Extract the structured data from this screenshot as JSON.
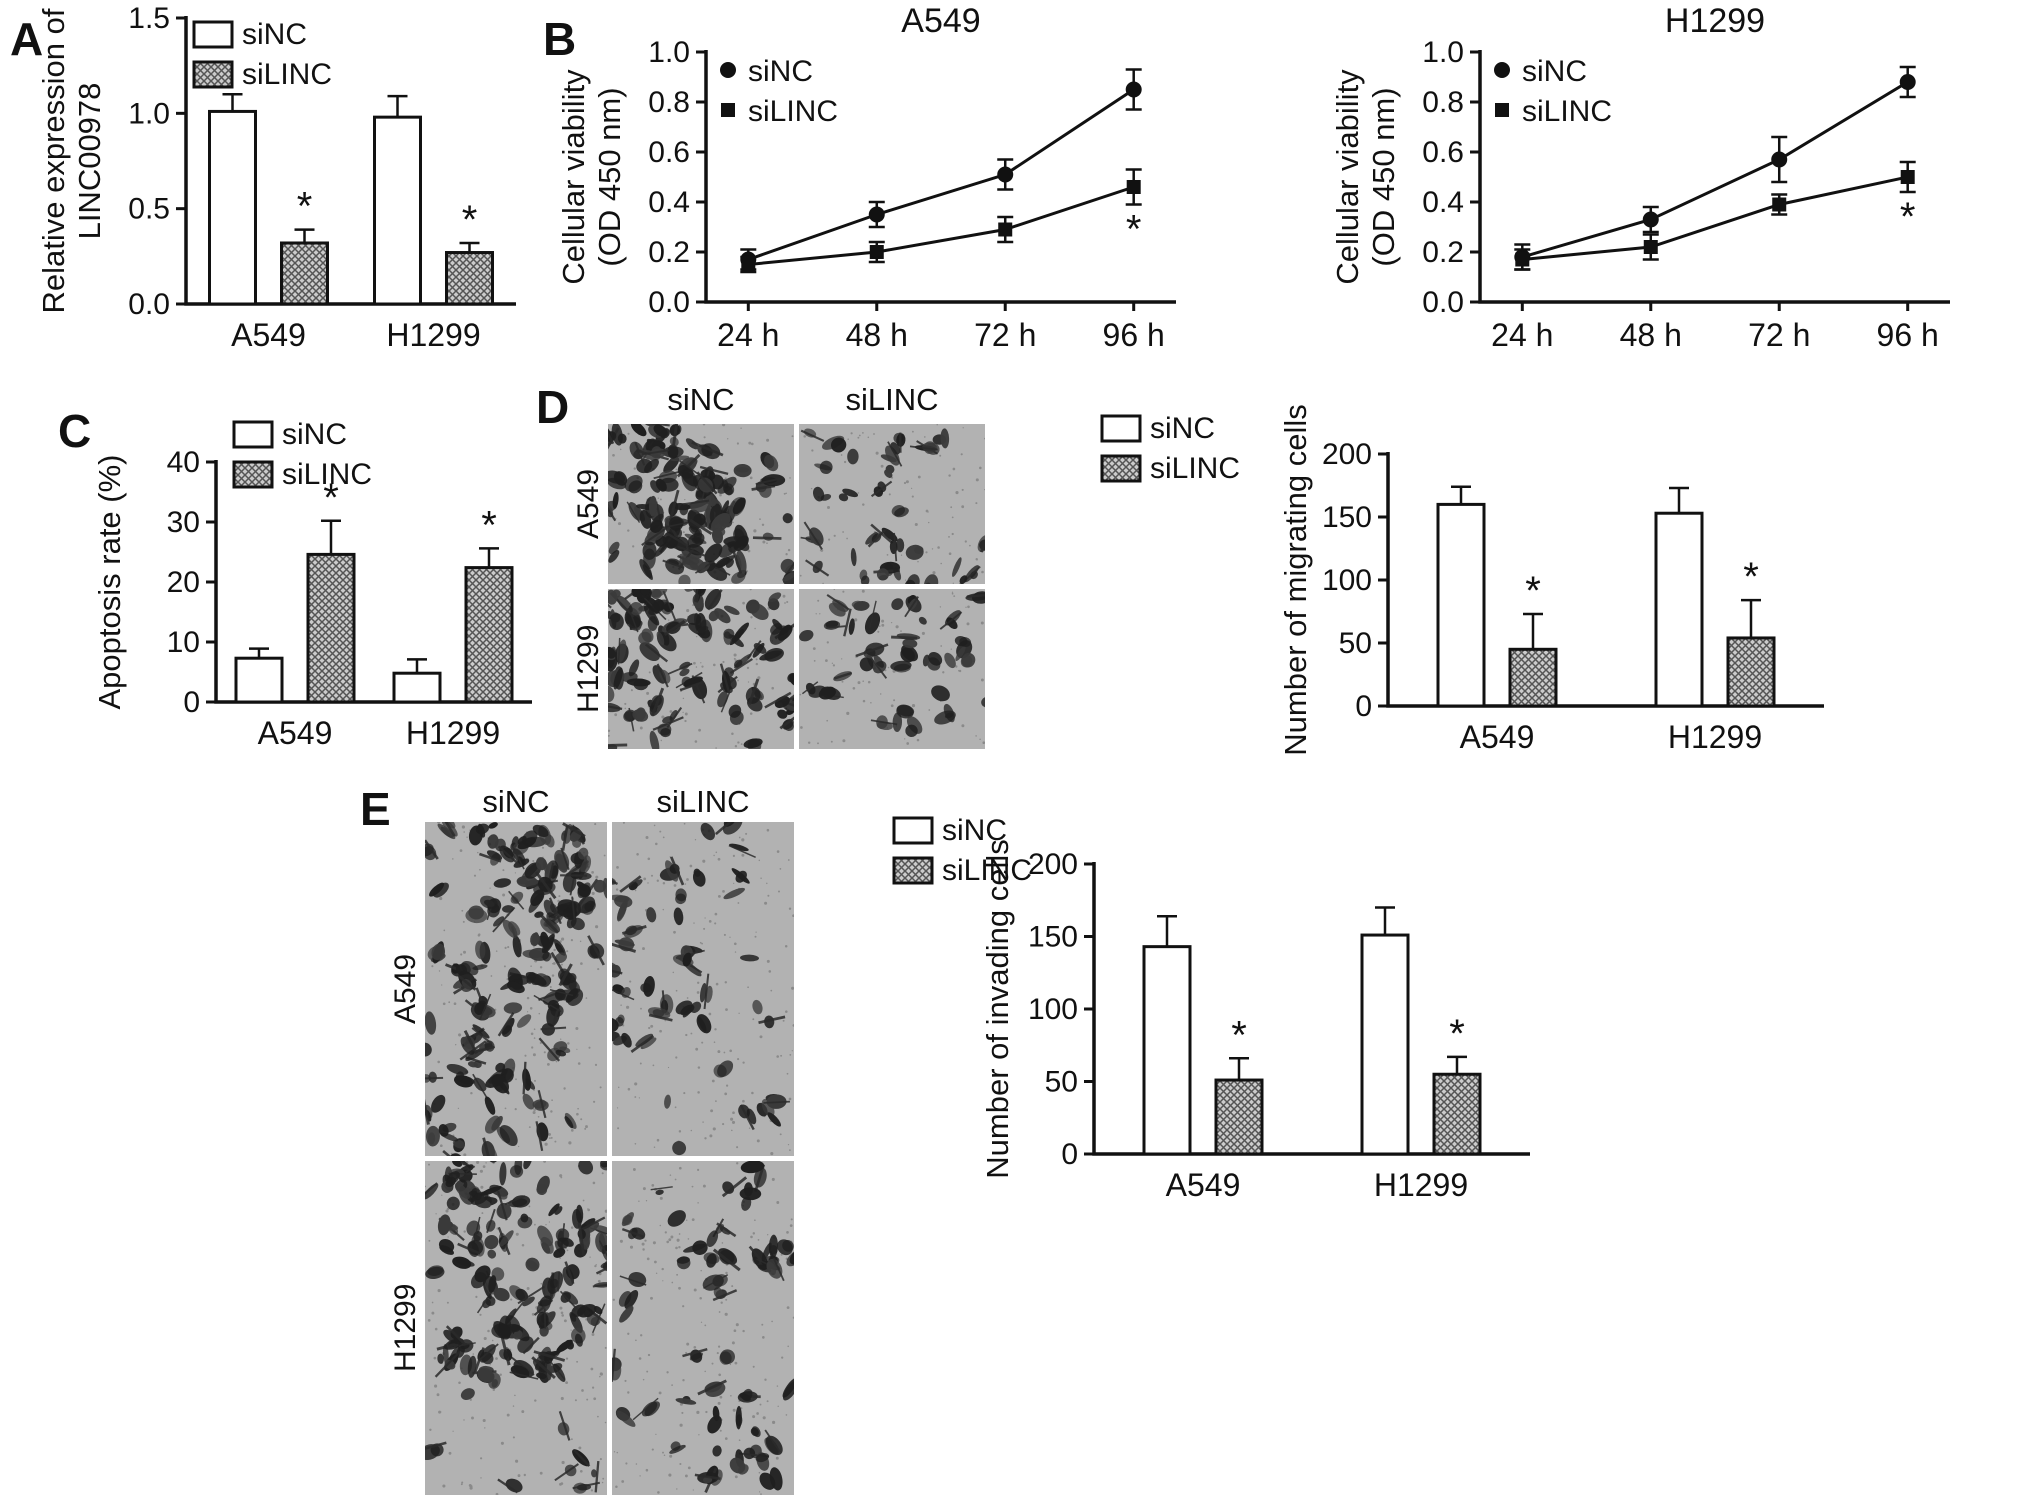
{
  "panel_labels": {
    "A": "A",
    "B": "B",
    "C": "C",
    "D": "D",
    "E": "E"
  },
  "legend_labels": [
    "siNC",
    "siLINC"
  ],
  "cell_lines": [
    "A549",
    "H1299"
  ],
  "micrographs": {
    "D": {
      "columns": [
        "siNC",
        "siLINC"
      ],
      "rows": [
        "A549",
        "H1299"
      ],
      "density": [
        [
          0.92,
          0.3
        ],
        [
          0.85,
          0.32
        ]
      ]
    },
    "E": {
      "columns": [
        "siNC",
        "siLINC"
      ],
      "rows": [
        "A549",
        "H1299"
      ],
      "density": [
        [
          0.6,
          0.22
        ],
        [
          0.58,
          0.26
        ]
      ]
    }
  },
  "chart_data": [
    {
      "id": "A",
      "panel": "A",
      "type": "bar",
      "ylabel": "Relative expression of\nLINC00978",
      "categories": [
        "A549",
        "H1299"
      ],
      "series": [
        {
          "name": "siNC",
          "fill": "open",
          "values": [
            1.01,
            0.98
          ],
          "errors": [
            0.09,
            0.11
          ]
        },
        {
          "name": "siLINC",
          "fill": "hatched",
          "values": [
            0.32,
            0.27
          ],
          "errors": [
            0.07,
            0.05
          ],
          "significance": [
            "*",
            "*"
          ]
        }
      ],
      "ylim": [
        0,
        1.5
      ],
      "yticks": [
        0,
        0.5,
        1,
        1.5
      ],
      "ytick_labels": [
        "0.0",
        "0.5",
        "1.0",
        "1.5"
      ],
      "legend_position": "top-left"
    },
    {
      "id": "B1",
      "panel": "B",
      "type": "line",
      "title": "A549",
      "ylabel": "Cellular viability\n(OD 450 nm)",
      "x": [
        "24 h",
        "48 h",
        "72 h",
        "96 h"
      ],
      "series": [
        {
          "name": "siNC",
          "marker": "circle",
          "values": [
            0.17,
            0.35,
            0.51,
            0.85
          ],
          "errors": [
            0.04,
            0.05,
            0.06,
            0.08
          ]
        },
        {
          "name": "siLINC",
          "marker": "square",
          "values": [
            0.15,
            0.2,
            0.29,
            0.46
          ],
          "errors": [
            0.03,
            0.04,
            0.05,
            0.07
          ],
          "significance": [
            "",
            "",
            "",
            "*"
          ]
        }
      ],
      "ylim": [
        0,
        1.0
      ],
      "yticks": [
        0,
        0.2,
        0.4,
        0.6,
        0.8,
        1.0
      ],
      "ytick_labels": [
        "0.0",
        "0.2",
        "0.4",
        "0.6",
        "0.8",
        "1.0"
      ],
      "legend_position": "inside-top-left"
    },
    {
      "id": "B2",
      "panel": "B",
      "type": "line",
      "title": "H1299",
      "ylabel": "Cellular viability\n(OD 450 nm)",
      "x": [
        "24 h",
        "48 h",
        "72 h",
        "96 h"
      ],
      "series": [
        {
          "name": "siNC",
          "marker": "circle",
          "values": [
            0.18,
            0.33,
            0.57,
            0.88
          ],
          "errors": [
            0.05,
            0.05,
            0.09,
            0.06
          ]
        },
        {
          "name": "siLINC",
          "marker": "square",
          "values": [
            0.17,
            0.22,
            0.39,
            0.5
          ],
          "errors": [
            0.04,
            0.05,
            0.04,
            0.06
          ],
          "significance": [
            "",
            "",
            "",
            "*"
          ]
        }
      ],
      "ylim": [
        0,
        1.0
      ],
      "yticks": [
        0,
        0.2,
        0.4,
        0.6,
        0.8,
        1.0
      ],
      "ytick_labels": [
        "0.0",
        "0.2",
        "0.4",
        "0.6",
        "0.8",
        "1.0"
      ],
      "legend_position": "inside-top-left"
    },
    {
      "id": "C",
      "panel": "C",
      "type": "bar",
      "ylabel": "Apoptosis rate (%)",
      "categories": [
        "A549",
        "H1299"
      ],
      "series": [
        {
          "name": "siNC",
          "fill": "open",
          "values": [
            7.3,
            4.8
          ],
          "errors": [
            1.6,
            2.3
          ]
        },
        {
          "name": "siLINC",
          "fill": "hatched",
          "values": [
            24.6,
            22.4
          ],
          "errors": [
            5.6,
            3.2
          ],
          "significance": [
            "*",
            "*"
          ]
        }
      ],
      "ylim": [
        0,
        40
      ],
      "yticks": [
        0,
        10,
        20,
        30,
        40
      ],
      "ytick_labels": [
        "0",
        "10",
        "20",
        "30",
        "40"
      ],
      "legend_position": "top-left"
    },
    {
      "id": "D",
      "panel": "D",
      "type": "bar",
      "ylabel": "Number of migrating cells",
      "categories": [
        "A549",
        "H1299"
      ],
      "series": [
        {
          "name": "siNC",
          "fill": "open",
          "values": [
            160,
            153
          ],
          "errors": [
            14,
            20
          ]
        },
        {
          "name": "siLINC",
          "fill": "hatched",
          "values": [
            45,
            54
          ],
          "errors": [
            28,
            30
          ],
          "significance": [
            "*",
            "*"
          ]
        }
      ],
      "ylim": [
        0,
        200
      ],
      "yticks": [
        0,
        50,
        100,
        150,
        200
      ],
      "ytick_labels": [
        "0",
        "50",
        "100",
        "150",
        "200"
      ],
      "legend_position": "top-left"
    },
    {
      "id": "E",
      "panel": "E",
      "type": "bar",
      "ylabel": "Number of invading cells",
      "categories": [
        "A549",
        "H1299"
      ],
      "series": [
        {
          "name": "siNC",
          "fill": "open",
          "values": [
            143,
            151
          ],
          "errors": [
            21,
            19
          ]
        },
        {
          "name": "siLINC",
          "fill": "hatched",
          "values": [
            51,
            55
          ],
          "errors": [
            15,
            12
          ],
          "significance": [
            "*",
            "*"
          ]
        }
      ],
      "ylim": [
        0,
        200
      ],
      "yticks": [
        0,
        50,
        100,
        150,
        200
      ],
      "ytick_labels": [
        "0",
        "50",
        "100",
        "150",
        "200"
      ],
      "legend_position": "top-left"
    }
  ]
}
